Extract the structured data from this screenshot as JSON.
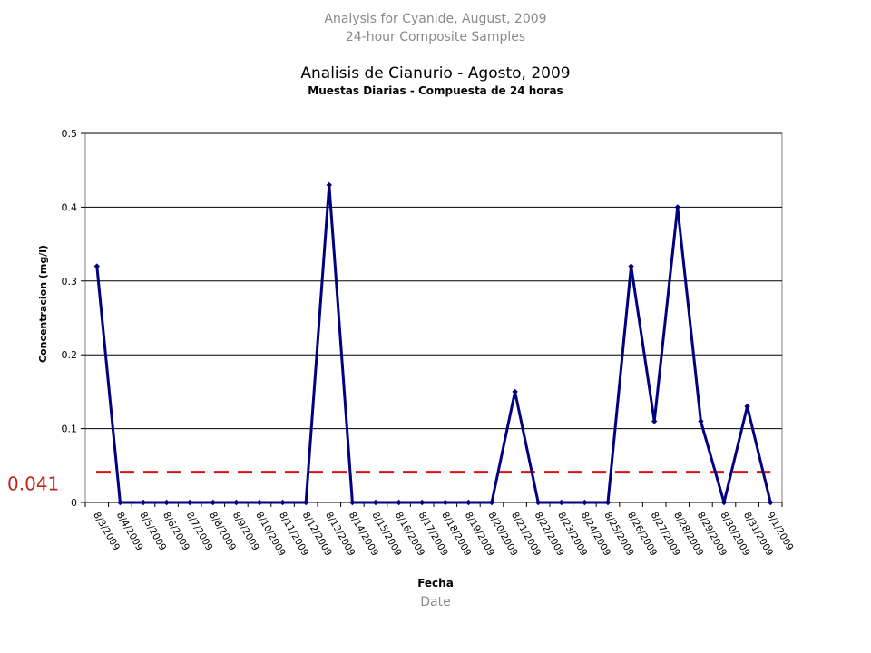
{
  "english_caption": {
    "title": "Analysis for Cyanide, August, 2009",
    "subtitle": "24-hour Composite Samples",
    "xlabel": "Date"
  },
  "chart_data": {
    "type": "line",
    "title": "Analisis de Cianurio - Agosto, 2009",
    "subtitle": "Muestas Diarias - Compuesta de 24 horas",
    "xlabel": "Fecha",
    "ylabel": "Concentracion (mg/l)",
    "ylim": [
      0,
      0.5
    ],
    "yticks": [
      "0",
      "0.1",
      "0.2",
      "0.3",
      "0.4",
      "0.5"
    ],
    "grid": true,
    "categories": [
      "8/3/2009",
      "8/4/2009",
      "8/5/2009",
      "8/6/2009",
      "8/7/2009",
      "8/8/2009",
      "8/9/2009",
      "8/10/2009",
      "8/11/2009",
      "8/12/2009",
      "8/13/2009",
      "8/14/2009",
      "8/15/2009",
      "8/16/2009",
      "8/17/2009",
      "8/18/2009",
      "8/19/2009",
      "8/20/2009",
      "8/21/2009",
      "8/22/2009",
      "8/23/2009",
      "8/24/2009",
      "8/25/2009",
      "8/26/2009",
      "8/27/2009",
      "8/28/2009",
      "8/29/2009",
      "8/30/2009",
      "8/31/2009",
      "9/1/2009"
    ],
    "series": [
      {
        "color": "#000080",
        "values": [
          0.32,
          0,
          0,
          0,
          0,
          0,
          0,
          0,
          0,
          0,
          0.43,
          0,
          0,
          0,
          0,
          0,
          0,
          0,
          0.15,
          0,
          0,
          0,
          0,
          0.32,
          0.11,
          0.4,
          0.11,
          0,
          0.13,
          0
        ]
      }
    ],
    "reference_line": {
      "value": 0.041,
      "label": "0.041",
      "color": "#dd1111",
      "style": "dashed"
    }
  }
}
